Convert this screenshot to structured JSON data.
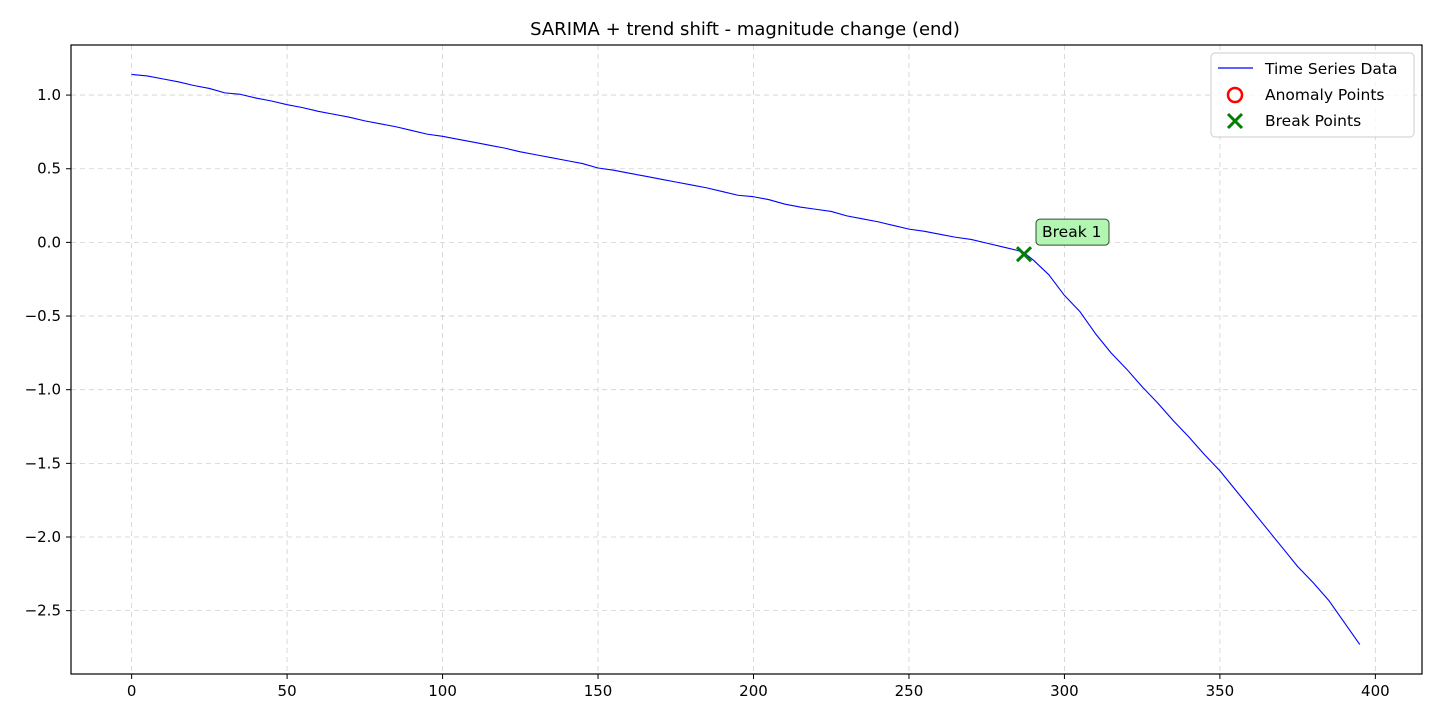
{
  "chart_data": {
    "type": "line",
    "title": "SARIMA + trend shift - magnitude change (end)",
    "xlabel": "",
    "ylabel": "",
    "xlim": [
      -19.5,
      415
    ],
    "ylim": [
      -2.93,
      1.34
    ],
    "grid": true,
    "xticks": [
      0,
      50,
      100,
      150,
      200,
      250,
      300,
      350,
      400
    ],
    "yticks": [
      -2.5,
      -2.0,
      -1.5,
      -1.0,
      -0.5,
      0.0,
      0.5,
      1.0
    ],
    "xtick_labels": [
      "0",
      "50",
      "100",
      "150",
      "200",
      "250",
      "300",
      "350",
      "400"
    ],
    "ytick_labels": [
      "−2.5",
      "−2.0",
      "−1.5",
      "−1.0",
      "−0.5",
      "0.0",
      "0.5",
      "1.0"
    ],
    "legend_position": "top-right",
    "series": [
      {
        "name": "Time Series Data",
        "color": "#0000ff",
        "points": [
          [
            0,
            1.14
          ],
          [
            5,
            1.13
          ],
          [
            10,
            1.11
          ],
          [
            15,
            1.09
          ],
          [
            20,
            1.065
          ],
          [
            25,
            1.045
          ],
          [
            30,
            1.015
          ],
          [
            35,
            1.005
          ],
          [
            40,
            0.98
          ],
          [
            45,
            0.96
          ],
          [
            50,
            0.935
          ],
          [
            55,
            0.915
          ],
          [
            60,
            0.89
          ],
          [
            65,
            0.87
          ],
          [
            70,
            0.85
          ],
          [
            75,
            0.825
          ],
          [
            80,
            0.805
          ],
          [
            85,
            0.785
          ],
          [
            90,
            0.76
          ],
          [
            95,
            0.735
          ],
          [
            100,
            0.72
          ],
          [
            105,
            0.7
          ],
          [
            110,
            0.68
          ],
          [
            115,
            0.66
          ],
          [
            120,
            0.64
          ],
          [
            125,
            0.615
          ],
          [
            130,
            0.595
          ],
          [
            135,
            0.575
          ],
          [
            140,
            0.555
          ],
          [
            145,
            0.535
          ],
          [
            150,
            0.505
          ],
          [
            155,
            0.49
          ],
          [
            160,
            0.47
          ],
          [
            165,
            0.45
          ],
          [
            170,
            0.43
          ],
          [
            175,
            0.41
          ],
          [
            180,
            0.39
          ],
          [
            185,
            0.37
          ],
          [
            190,
            0.345
          ],
          [
            195,
            0.32
          ],
          [
            200,
            0.31
          ],
          [
            205,
            0.29
          ],
          [
            210,
            0.26
          ],
          [
            215,
            0.24
          ],
          [
            220,
            0.225
          ],
          [
            225,
            0.21
          ],
          [
            230,
            0.18
          ],
          [
            235,
            0.16
          ],
          [
            240,
            0.14
          ],
          [
            245,
            0.115
          ],
          [
            250,
            0.09
          ],
          [
            255,
            0.075
          ],
          [
            260,
            0.055
          ],
          [
            265,
            0.035
          ],
          [
            270,
            0.02
          ],
          [
            275,
            -0.005
          ],
          [
            280,
            -0.03
          ],
          [
            285,
            -0.055
          ],
          [
            287,
            -0.07
          ],
          [
            290,
            -0.12
          ],
          [
            295,
            -0.22
          ],
          [
            300,
            -0.36
          ],
          [
            305,
            -0.47
          ],
          [
            310,
            -0.62
          ],
          [
            315,
            -0.75
          ],
          [
            320,
            -0.86
          ],
          [
            325,
            -0.98
          ],
          [
            330,
            -1.09
          ],
          [
            335,
            -1.21
          ],
          [
            340,
            -1.32
          ],
          [
            345,
            -1.44
          ],
          [
            350,
            -1.55
          ],
          [
            355,
            -1.68
          ],
          [
            360,
            -1.81
          ],
          [
            365,
            -1.94
          ],
          [
            370,
            -2.07
          ],
          [
            375,
            -2.2
          ],
          [
            380,
            -2.31
          ],
          [
            385,
            -2.43
          ],
          [
            390,
            -2.58
          ],
          [
            395,
            -2.73
          ]
        ]
      },
      {
        "name": "Anomaly Points",
        "color": "#ff0000",
        "marker": "circle",
        "points": []
      },
      {
        "name": "Break Points",
        "color": "#008000",
        "marker": "x",
        "points": [
          [
            287,
            -0.08
          ]
        ]
      }
    ],
    "annotations": [
      {
        "text": "Break 1",
        "x": 287,
        "y": -0.08,
        "background": "#b3f5b3"
      }
    ]
  }
}
